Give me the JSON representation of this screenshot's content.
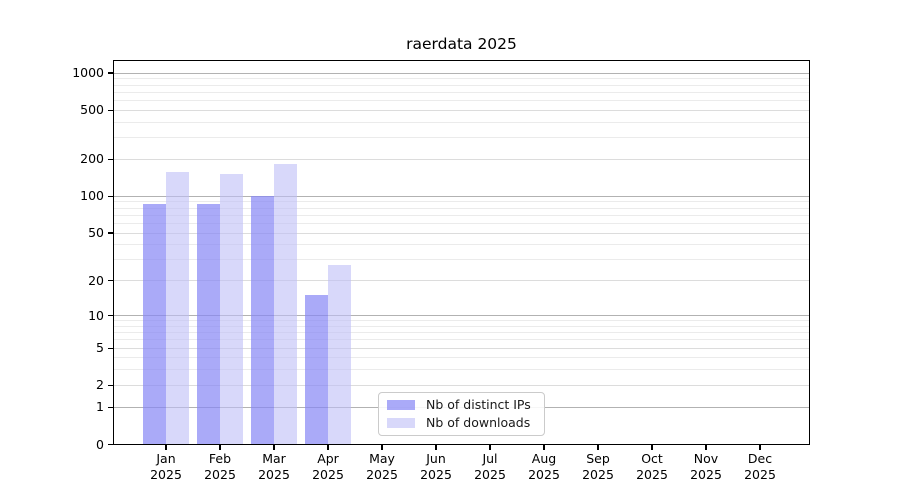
{
  "chart_data": {
    "type": "bar",
    "title": "raerdata 2025",
    "categories": [
      "Jan",
      "Feb",
      "Mar",
      "Apr",
      "May",
      "Jun",
      "Jul",
      "Aug",
      "Sep",
      "Oct",
      "Nov",
      "Dec"
    ],
    "year_label": "2025",
    "series": [
      {
        "name": "Nb of distinct IPs",
        "color": "#8686f5",
        "opacity": 0.7,
        "values": [
          87,
          87,
          100,
          15,
          0,
          0,
          0,
          0,
          0,
          0,
          0,
          0
        ]
      },
      {
        "name": "Nb of downloads",
        "color": "#bebef7",
        "opacity": 0.6,
        "values": [
          157,
          152,
          183,
          27,
          0,
          0,
          0,
          0,
          0,
          0,
          0,
          0
        ]
      }
    ],
    "y_axis": {
      "scale": "log1p",
      "ticks": [
        1000,
        500,
        200,
        100,
        50,
        20,
        10,
        5,
        2,
        1,
        0
      ],
      "range_max": 1270,
      "grid": true
    },
    "x_axis": {
      "grid": false
    },
    "legend": {
      "position": "lower center"
    }
  }
}
